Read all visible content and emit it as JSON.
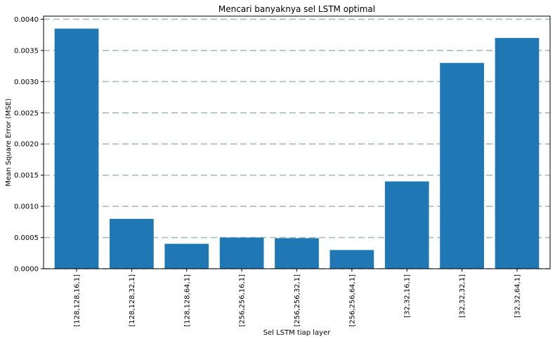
{
  "chart_data": {
    "type": "bar",
    "title": "Mencari banyaknya sel LSTM optimal",
    "xlabel": "Sel LSTM tiap layer",
    "ylabel": "Mean Square Error (MSE)",
    "categories": [
      "[128,128,16,1]",
      "[128,128,32,1]",
      "[128,128,64,1]",
      "[256,256,16,1]",
      "[256,256,32,1]",
      "[256,256,64,1]",
      "[32,32,16,1]",
      "[32,32,32,1]",
      "[32,32,64,1]"
    ],
    "values": [
      0.00385,
      0.0008,
      0.0004,
      0.0005,
      0.00049,
      0.0003,
      0.0014,
      0.0033,
      0.0037
    ],
    "ylim": [
      0,
      0.00405
    ],
    "yticks": [
      "0.0000",
      "0.0005",
      "0.0010",
      "0.0015",
      "0.0020",
      "0.0025",
      "0.0030",
      "0.0035",
      "0.0040"
    ],
    "ytick_values": [
      0,
      0.0005,
      0.001,
      0.0015,
      0.002,
      0.0025,
      0.003,
      0.0035,
      0.004
    ],
    "grid": "horizontal-dashed",
    "bar_color": "#1f77b4",
    "grid_color": "#a7bcbf"
  }
}
